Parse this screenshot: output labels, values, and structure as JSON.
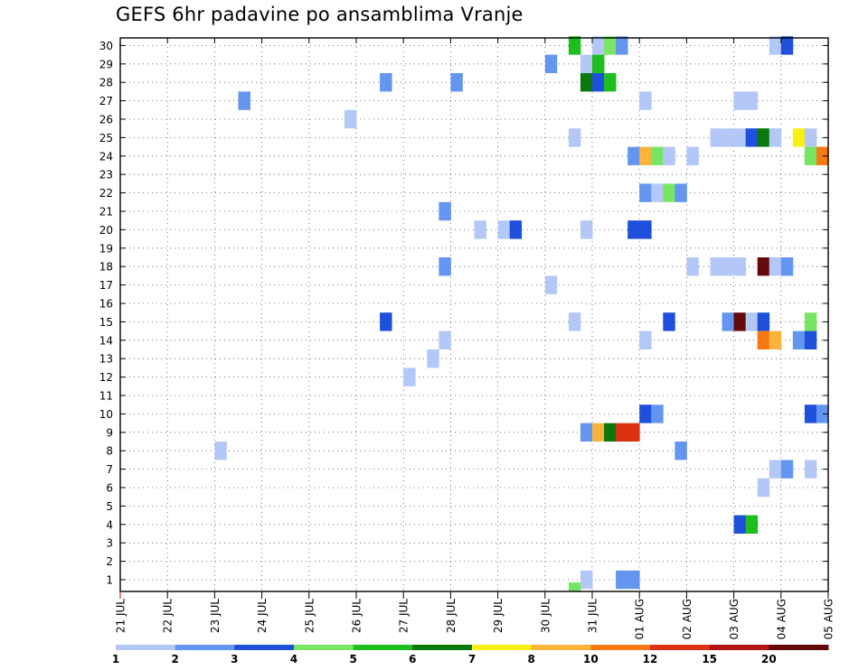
{
  "chart_data": {
    "type": "heatmap",
    "title": "GEFS 6hr padavine po ansamblima Vranje",
    "xlabel": "",
    "ylabel": "",
    "x_ticks": [
      "21 JUL",
      "22 JUL",
      "23 JUL",
      "24 JUL",
      "25 JUL",
      "26 JUL",
      "27 JUL",
      "28 JUL",
      "29 JUL",
      "30 JUL",
      "31 JUL",
      "01 AUG",
      "02 AUG",
      "03 AUG",
      "04 AUG",
      "05 AUG"
    ],
    "y_ticks": [
      "1",
      "2",
      "3",
      "4",
      "5",
      "6",
      "7",
      "8",
      "9",
      "10",
      "11",
      "12",
      "13",
      "14",
      "15",
      "16",
      "17",
      "18",
      "19",
      "20",
      "21",
      "22",
      "23",
      "24",
      "25",
      "26",
      "27",
      "28",
      "29",
      "30"
    ],
    "x_range_steps": [
      0,
      60
    ],
    "time_step_hours": 6,
    "members": 30,
    "grid": true,
    "colorbar": {
      "position": "bottom",
      "levels": [
        "1",
        "2",
        "3",
        "4",
        "5",
        "6",
        "7",
        "8",
        "10",
        "12",
        "15",
        "20"
      ],
      "colors": [
        "#b4c8f8",
        "#6496f0",
        "#1e50dc",
        "#78e664",
        "#1ebe1e",
        "#0a780a",
        "#f8f014",
        "#fab43c",
        "#f87814",
        "#dc3214",
        "#b41414",
        "#640a0a"
      ]
    },
    "cells": [
      {
        "member": 30,
        "step": 38,
        "bin": 5
      },
      {
        "member": 30,
        "step": 40,
        "bin": 1
      },
      {
        "member": 30,
        "step": 41,
        "bin": 4
      },
      {
        "member": 30,
        "step": 42,
        "bin": 2
      },
      {
        "member": 30,
        "step": 55,
        "bin": 1
      },
      {
        "member": 30,
        "step": 56,
        "bin": 3
      },
      {
        "member": 29,
        "step": 36,
        "bin": 2
      },
      {
        "member": 29,
        "step": 39,
        "bin": 1
      },
      {
        "member": 29,
        "step": 40,
        "bin": 5
      },
      {
        "member": 28,
        "step": 22,
        "bin": 2
      },
      {
        "member": 28,
        "step": 28,
        "bin": 2
      },
      {
        "member": 28,
        "step": 39,
        "bin": 6
      },
      {
        "member": 28,
        "step": 40,
        "bin": 3
      },
      {
        "member": 28,
        "step": 41,
        "bin": 5
      },
      {
        "member": 27,
        "step": 10,
        "bin": 2
      },
      {
        "member": 27,
        "step": 44,
        "bin": 1
      },
      {
        "member": 27,
        "step": 52,
        "bin": 1
      },
      {
        "member": 27,
        "step": 53,
        "bin": 1
      },
      {
        "member": 26,
        "step": 19,
        "bin": 1
      },
      {
        "member": 25,
        "step": 38,
        "bin": 1
      },
      {
        "member": 25,
        "step": 50,
        "bin": 1
      },
      {
        "member": 25,
        "step": 51,
        "bin": 1
      },
      {
        "member": 25,
        "step": 52,
        "bin": 1
      },
      {
        "member": 25,
        "step": 53,
        "bin": 3
      },
      {
        "member": 25,
        "step": 54,
        "bin": 6
      },
      {
        "member": 25,
        "step": 55,
        "bin": 1
      },
      {
        "member": 25,
        "step": 57,
        "bin": 7
      },
      {
        "member": 25,
        "step": 58,
        "bin": 1
      },
      {
        "member": 24,
        "step": 43,
        "bin": 2
      },
      {
        "member": 24,
        "step": 44,
        "bin": 8
      },
      {
        "member": 24,
        "step": 45,
        "bin": 4
      },
      {
        "member": 24,
        "step": 46,
        "bin": 1
      },
      {
        "member": 24,
        "step": 48,
        "bin": 1
      },
      {
        "member": 24,
        "step": 58,
        "bin": 4
      },
      {
        "member": 24,
        "step": 59,
        "bin": 9
      },
      {
        "member": 22,
        "step": 44,
        "bin": 2
      },
      {
        "member": 22,
        "step": 45,
        "bin": 1
      },
      {
        "member": 22,
        "step": 46,
        "bin": 4
      },
      {
        "member": 22,
        "step": 47,
        "bin": 2
      },
      {
        "member": 21,
        "step": 27,
        "bin": 2
      },
      {
        "member": 20,
        "step": 30,
        "bin": 1
      },
      {
        "member": 20,
        "step": 32,
        "bin": 1
      },
      {
        "member": 20,
        "step": 33,
        "bin": 3
      },
      {
        "member": 20,
        "step": 39,
        "bin": 1
      },
      {
        "member": 20,
        "step": 43,
        "bin": 3
      },
      {
        "member": 20,
        "step": 44,
        "bin": 3
      },
      {
        "member": 18,
        "step": 27,
        "bin": 2
      },
      {
        "member": 18,
        "step": 48,
        "bin": 1
      },
      {
        "member": 18,
        "step": 50,
        "bin": 1
      },
      {
        "member": 18,
        "step": 51,
        "bin": 1
      },
      {
        "member": 18,
        "step": 52,
        "bin": 1
      },
      {
        "member": 18,
        "step": 54,
        "bin": 12
      },
      {
        "member": 18,
        "step": 55,
        "bin": 1
      },
      {
        "member": 18,
        "step": 56,
        "bin": 2
      },
      {
        "member": 17,
        "step": 36,
        "bin": 1
      },
      {
        "member": 15,
        "step": 22,
        "bin": 3
      },
      {
        "member": 15,
        "step": 38,
        "bin": 1
      },
      {
        "member": 15,
        "step": 46,
        "bin": 3
      },
      {
        "member": 15,
        "step": 51,
        "bin": 2
      },
      {
        "member": 15,
        "step": 52,
        "bin": 12
      },
      {
        "member": 15,
        "step": 53,
        "bin": 1
      },
      {
        "member": 15,
        "step": 54,
        "bin": 3
      },
      {
        "member": 15,
        "step": 58,
        "bin": 4
      },
      {
        "member": 14,
        "step": 27,
        "bin": 1
      },
      {
        "member": 14,
        "step": 44,
        "bin": 1
      },
      {
        "member": 14,
        "step": 54,
        "bin": 9
      },
      {
        "member": 14,
        "step": 55,
        "bin": 8
      },
      {
        "member": 14,
        "step": 57,
        "bin": 2
      },
      {
        "member": 14,
        "step": 58,
        "bin": 3
      },
      {
        "member": 13,
        "step": 26,
        "bin": 1
      },
      {
        "member": 12,
        "step": 24,
        "bin": 1
      },
      {
        "member": 10,
        "step": 44,
        "bin": 3
      },
      {
        "member": 10,
        "step": 45,
        "bin": 2
      },
      {
        "member": 10,
        "step": 58,
        "bin": 3
      },
      {
        "member": 10,
        "step": 59,
        "bin": 2
      },
      {
        "member": 9,
        "step": 39,
        "bin": 2
      },
      {
        "member": 9,
        "step": 40,
        "bin": 8
      },
      {
        "member": 9,
        "step": 41,
        "bin": 6
      },
      {
        "member": 9,
        "step": 42,
        "bin": 10
      },
      {
        "member": 9,
        "step": 43,
        "bin": 10
      },
      {
        "member": 8,
        "step": 8,
        "bin": 1
      },
      {
        "member": 8,
        "step": 47,
        "bin": 2
      },
      {
        "member": 7,
        "step": 55,
        "bin": 1
      },
      {
        "member": 7,
        "step": 56,
        "bin": 2
      },
      {
        "member": 7,
        "step": 58,
        "bin": 1
      },
      {
        "member": 6,
        "step": 54,
        "bin": 1
      },
      {
        "member": 4,
        "step": 52,
        "bin": 3
      },
      {
        "member": 4,
        "step": 53,
        "bin": 5
      },
      {
        "member": 1,
        "step": 39,
        "bin": 1
      },
      {
        "member": 1,
        "step": 42,
        "bin": 2
      },
      {
        "member": 1,
        "step": 43,
        "bin": 2
      },
      {
        "member": 0,
        "step": 38,
        "bin": 4
      }
    ]
  }
}
